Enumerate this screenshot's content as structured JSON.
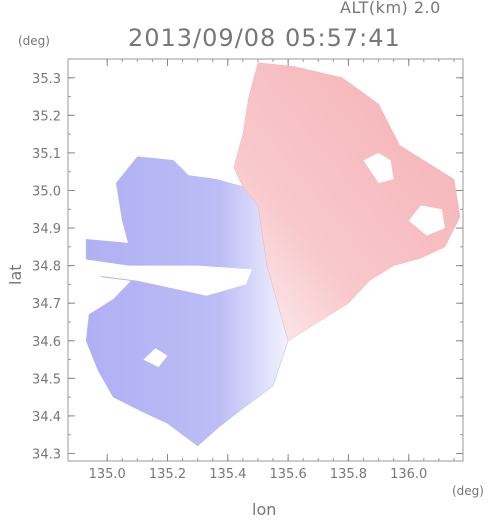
{
  "header": {
    "altitude_label": "ALT(km) 2.0",
    "timestamp": "2013/09/08 05:57:41"
  },
  "chart_data": {
    "type": "heatmap",
    "xlabel": "lon",
    "ylabel": "lat",
    "x_unit": "(deg)",
    "y_unit": "(deg)",
    "xlim": [
      134.87,
      136.18
    ],
    "ylim": [
      34.28,
      35.35
    ],
    "x_ticks": [
      135.0,
      135.2,
      135.4,
      135.6,
      135.8,
      136.0
    ],
    "y_ticks": [
      34.3,
      34.4,
      34.5,
      34.6,
      34.7,
      34.8,
      34.9,
      35.0,
      35.1,
      35.2,
      35.3
    ],
    "x_tick_labels": [
      "135.0",
      "135.2",
      "135.4",
      "135.6",
      "135.8",
      "136.0"
    ],
    "y_tick_labels": [
      "34.3",
      "34.4",
      "34.5",
      "34.6",
      "34.7",
      "34.8",
      "34.9",
      "35.0",
      "35.1",
      "35.2",
      "35.3"
    ],
    "colors": {
      "negative": "#b4b4f5",
      "positive": "#f5b4b8",
      "zero": "#ffffff"
    },
    "radar_center": [
      135.53,
      34.8
    ],
    "regions": [
      {
        "name": "negative-west",
        "sign": -1,
        "polygon": [
          [
            134.93,
            34.87
          ],
          [
            135.07,
            34.86
          ],
          [
            135.05,
            34.92
          ],
          [
            135.03,
            35.02
          ],
          [
            135.1,
            35.09
          ],
          [
            135.22,
            35.08
          ],
          [
            135.27,
            35.04
          ],
          [
            135.36,
            35.03
          ],
          [
            135.45,
            35.01
          ],
          [
            135.5,
            34.96
          ],
          [
            135.53,
            34.8
          ],
          [
            135.6,
            34.6
          ],
          [
            135.55,
            34.48
          ],
          [
            135.45,
            34.42
          ],
          [
            135.37,
            34.37
          ],
          [
            135.3,
            34.32
          ],
          [
            135.2,
            34.38
          ],
          [
            135.12,
            34.41
          ],
          [
            135.02,
            34.45
          ],
          [
            134.97,
            34.52
          ],
          [
            134.93,
            34.6
          ],
          [
            134.94,
            34.67
          ],
          [
            135.02,
            34.71
          ],
          [
            135.08,
            34.76
          ],
          [
            134.98,
            34.77
          ],
          [
            134.93,
            34.8
          ]
        ]
      },
      {
        "name": "positive-east",
        "sign": 1,
        "polygon": [
          [
            135.53,
            34.8
          ],
          [
            135.5,
            34.96
          ],
          [
            135.45,
            35.01
          ],
          [
            135.42,
            35.06
          ],
          [
            135.45,
            35.15
          ],
          [
            135.47,
            35.25
          ],
          [
            135.5,
            35.34
          ],
          [
            135.62,
            35.33
          ],
          [
            135.78,
            35.3
          ],
          [
            135.9,
            35.23
          ],
          [
            135.97,
            35.12
          ],
          [
            136.05,
            35.08
          ],
          [
            136.15,
            35.03
          ],
          [
            136.17,
            34.93
          ],
          [
            136.12,
            34.85
          ],
          [
            136.04,
            34.82
          ],
          [
            135.95,
            34.8
          ],
          [
            135.87,
            34.76
          ],
          [
            135.8,
            34.7
          ],
          [
            135.72,
            34.66
          ],
          [
            135.62,
            34.61
          ],
          [
            135.6,
            34.6
          ]
        ]
      }
    ],
    "gaps": [
      {
        "polygon": [
          [
            134.9,
            34.78
          ],
          [
            135.1,
            34.76
          ],
          [
            135.33,
            34.72
          ],
          [
            135.46,
            34.75
          ],
          [
            135.48,
            34.79
          ],
          [
            135.3,
            34.8
          ],
          [
            135.07,
            34.8
          ],
          [
            134.9,
            34.82
          ]
        ]
      },
      {
        "polygon": [
          [
            135.85,
            35.08
          ],
          [
            135.9,
            35.02
          ],
          [
            135.95,
            35.03
          ],
          [
            135.94,
            35.08
          ],
          [
            135.9,
            35.1
          ]
        ]
      },
      {
        "polygon": [
          [
            136.0,
            34.92
          ],
          [
            136.06,
            34.88
          ],
          [
            136.12,
            34.9
          ],
          [
            136.11,
            34.95
          ],
          [
            136.04,
            34.96
          ]
        ]
      },
      {
        "polygon": [
          [
            135.12,
            34.55
          ],
          [
            135.17,
            34.53
          ],
          [
            135.2,
            34.56
          ],
          [
            135.16,
            34.58
          ]
        ]
      }
    ]
  }
}
